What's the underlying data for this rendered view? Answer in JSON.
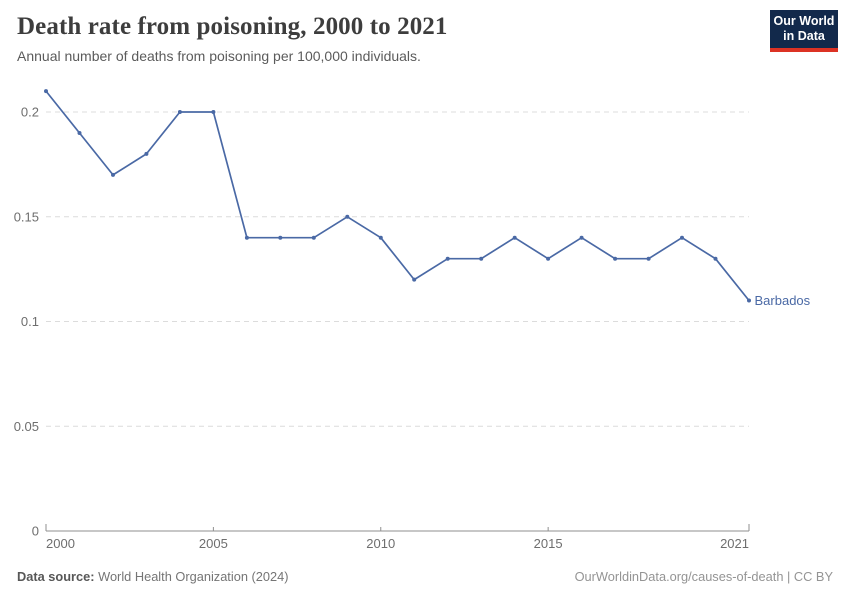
{
  "header": {
    "title": "Death rate from poisoning, 2000 to 2021",
    "subtitle": "Annual number of deaths from poisoning per 100,000 individuals.",
    "logo": {
      "line1": "Our World",
      "line2": "in Data"
    }
  },
  "chart_data": {
    "type": "line",
    "title": "Death rate from poisoning, 2000 to 2021",
    "subtitle": "Annual number of deaths from poisoning per 100,000 individuals.",
    "x": [
      2000,
      2001,
      2002,
      2003,
      2004,
      2005,
      2006,
      2007,
      2008,
      2009,
      2010,
      2011,
      2012,
      2013,
      2014,
      2015,
      2016,
      2017,
      2018,
      2019,
      2020,
      2021
    ],
    "series": [
      {
        "name": "Barbados",
        "values": [
          0.21,
          0.19,
          0.17,
          0.18,
          0.2,
          0.2,
          0.14,
          0.14,
          0.14,
          0.15,
          0.14,
          0.12,
          0.13,
          0.13,
          0.14,
          0.13,
          0.14,
          0.13,
          0.13,
          0.14,
          0.13,
          0.11
        ]
      }
    ],
    "xlabel": "",
    "ylabel": "",
    "xlim": [
      2000,
      2021
    ],
    "ylim": [
      0,
      0.21
    ],
    "x_ticks": [
      2000,
      2005,
      2010,
      2015,
      2021
    ],
    "y_ticks": [
      0,
      0.05,
      0.1,
      0.15,
      0.2
    ],
    "grid": "horizontal-dashed",
    "legend_position": "end-of-line-label",
    "end_label": "Barbados"
  },
  "footer": {
    "source_label": "Data source:",
    "source_text": "World Health Organization (2024)",
    "credit": "OurWorldinData.org/causes-of-death | CC BY"
  },
  "colors": {
    "line": "#4a69a5",
    "grid": "#dcdcdc",
    "axis": "#8f8f8f",
    "tick_label": "#6e6e6e",
    "title_text": "#3d3d3d",
    "subtitle_text": "#5b5b5b",
    "footer_text": "#757575",
    "credit_text": "#949494",
    "logo_bg": "#12294b",
    "logo_accent": "#dc3224"
  }
}
